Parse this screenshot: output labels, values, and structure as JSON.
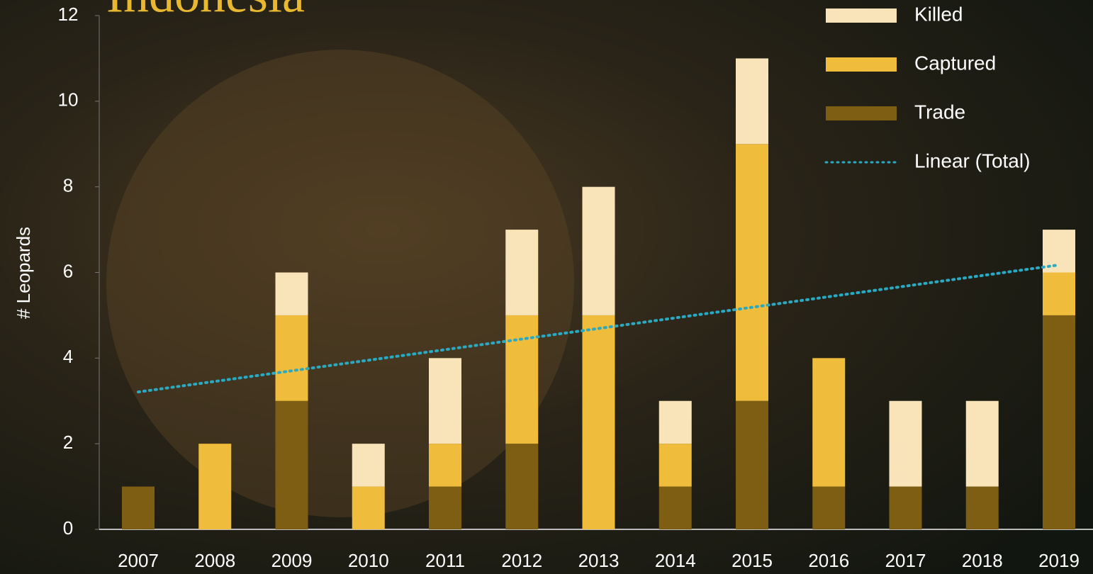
{
  "chart_data": {
    "type": "stacked_bar",
    "title": "Indonesia",
    "y_label": "# Leopards",
    "categories": [
      "2007",
      "2008",
      "2009",
      "2010",
      "2011",
      "2012",
      "2013",
      "2014",
      "2015",
      "2016",
      "2017",
      "2018",
      "2019"
    ],
    "series": [
      {
        "name": "Trade",
        "color": "#7d5e12",
        "values": [
          1,
          0,
          3,
          0,
          1,
          2,
          0,
          1,
          3,
          1,
          1,
          1,
          5
        ]
      },
      {
        "name": "Captured",
        "color": "#f0bc3c",
        "values": [
          0,
          2,
          2,
          1,
          1,
          3,
          5,
          1,
          6,
          3,
          0,
          0,
          1
        ]
      },
      {
        "name": "Killed",
        "color": "#f8e4b8",
        "values": [
          0,
          0,
          1,
          1,
          2,
          2,
          3,
          1,
          2,
          0,
          2,
          2,
          1
        ]
      }
    ],
    "trendline": {
      "name": "Linear (Total)",
      "color": "#2aa9c2"
    },
    "ylim": [
      0,
      12
    ],
    "yticks": [
      0,
      2,
      4,
      6,
      8,
      10,
      12
    ]
  }
}
